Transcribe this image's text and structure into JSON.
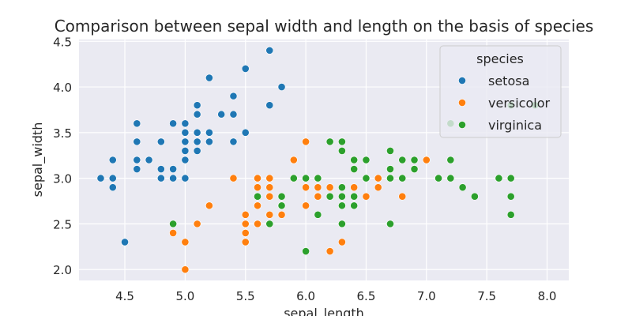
{
  "chart_data": {
    "type": "scatter",
    "title": "Comparison between sepal width and length on the basis of species",
    "xlabel": "sepal_length",
    "ylabel": "sepal_width",
    "xlim": [
      4.12,
      8.18
    ],
    "ylim": [
      1.88,
      4.52
    ],
    "xticks": [
      4.5,
      5.0,
      5.5,
      6.0,
      6.5,
      7.0,
      7.5,
      8.0
    ],
    "xtick_labels": [
      "4.5",
      "5.0",
      "5.5",
      "6.0",
      "6.5",
      "7.0",
      "7.5",
      "8.0"
    ],
    "yticks": [
      2.0,
      2.5,
      3.0,
      3.5,
      4.0,
      4.5
    ],
    "ytick_labels": [
      "2.0",
      "2.5",
      "3.0",
      "3.5",
      "4.0",
      "4.5"
    ],
    "grid": true,
    "background": "#eaeaf2",
    "legend": {
      "title": "species",
      "position": "top-right"
    },
    "series": [
      {
        "name": "setosa",
        "color": "#1f77b4",
        "points": [
          [
            5.1,
            3.5
          ],
          [
            4.9,
            3.0
          ],
          [
            4.7,
            3.2
          ],
          [
            4.6,
            3.1
          ],
          [
            5.0,
            3.6
          ],
          [
            5.4,
            3.9
          ],
          [
            4.6,
            3.4
          ],
          [
            5.0,
            3.4
          ],
          [
            4.4,
            2.9
          ],
          [
            4.9,
            3.1
          ],
          [
            5.4,
            3.7
          ],
          [
            4.8,
            3.4
          ],
          [
            4.8,
            3.0
          ],
          [
            4.3,
            3.0
          ],
          [
            5.8,
            4.0
          ],
          [
            5.7,
            4.4
          ],
          [
            5.4,
            3.9
          ],
          [
            5.1,
            3.5
          ],
          [
            5.7,
            3.8
          ],
          [
            5.1,
            3.8
          ],
          [
            5.4,
            3.4
          ],
          [
            5.1,
            3.7
          ],
          [
            4.6,
            3.6
          ],
          [
            5.1,
            3.3
          ],
          [
            4.8,
            3.4
          ],
          [
            5.0,
            3.0
          ],
          [
            5.0,
            3.4
          ],
          [
            5.2,
            3.5
          ],
          [
            5.2,
            3.4
          ],
          [
            4.7,
            3.2
          ],
          [
            4.8,
            3.1
          ],
          [
            5.4,
            3.4
          ],
          [
            5.2,
            4.1
          ],
          [
            5.5,
            4.2
          ],
          [
            4.9,
            3.1
          ],
          [
            5.0,
            3.2
          ],
          [
            5.5,
            3.5
          ],
          [
            4.9,
            3.6
          ],
          [
            4.4,
            3.0
          ],
          [
            5.1,
            3.4
          ],
          [
            5.0,
            3.5
          ],
          [
            4.5,
            2.3
          ],
          [
            4.4,
            3.2
          ],
          [
            5.0,
            3.5
          ],
          [
            5.1,
            3.8
          ],
          [
            4.8,
            3.0
          ],
          [
            5.1,
            3.8
          ],
          [
            4.6,
            3.2
          ],
          [
            5.3,
            3.7
          ],
          [
            5.0,
            3.3
          ]
        ]
      },
      {
        "name": "versicolor",
        "color": "#ff7f0e",
        "points": [
          [
            7.0,
            3.2
          ],
          [
            6.4,
            3.2
          ],
          [
            6.9,
            3.1
          ],
          [
            5.5,
            2.3
          ],
          [
            6.5,
            2.8
          ],
          [
            5.7,
            2.8
          ],
          [
            6.3,
            3.3
          ],
          [
            4.9,
            2.4
          ],
          [
            6.6,
            2.9
          ],
          [
            5.2,
            2.7
          ],
          [
            5.0,
            2.0
          ],
          [
            5.9,
            3.0
          ],
          [
            6.0,
            2.2
          ],
          [
            6.1,
            2.9
          ],
          [
            5.6,
            2.9
          ],
          [
            6.7,
            3.1
          ],
          [
            5.6,
            3.0
          ],
          [
            5.8,
            2.7
          ],
          [
            6.2,
            2.2
          ],
          [
            5.6,
            2.5
          ],
          [
            5.9,
            3.2
          ],
          [
            6.1,
            2.8
          ],
          [
            6.3,
            2.5
          ],
          [
            6.1,
            2.8
          ],
          [
            6.4,
            2.9
          ],
          [
            6.6,
            3.0
          ],
          [
            6.8,
            2.8
          ],
          [
            6.7,
            3.0
          ],
          [
            6.0,
            2.9
          ],
          [
            5.7,
            2.6
          ],
          [
            5.5,
            2.4
          ],
          [
            5.5,
            2.4
          ],
          [
            5.8,
            2.7
          ],
          [
            6.0,
            2.7
          ],
          [
            5.4,
            3.0
          ],
          [
            6.0,
            3.4
          ],
          [
            6.7,
            3.1
          ],
          [
            6.3,
            2.3
          ],
          [
            5.6,
            3.0
          ],
          [
            5.5,
            2.5
          ],
          [
            5.5,
            2.6
          ],
          [
            6.1,
            3.0
          ],
          [
            5.8,
            2.6
          ],
          [
            5.0,
            2.3
          ],
          [
            5.6,
            2.7
          ],
          [
            5.7,
            3.0
          ],
          [
            5.7,
            2.9
          ],
          [
            6.2,
            2.9
          ],
          [
            5.1,
            2.5
          ],
          [
            5.7,
            2.8
          ]
        ]
      },
      {
        "name": "virginica",
        "color": "#2ca02c",
        "points": [
          [
            6.3,
            3.3
          ],
          [
            5.8,
            2.7
          ],
          [
            7.1,
            3.0
          ],
          [
            6.3,
            2.9
          ],
          [
            6.5,
            3.0
          ],
          [
            7.6,
            3.0
          ],
          [
            4.9,
            2.5
          ],
          [
            7.3,
            2.9
          ],
          [
            6.7,
            2.5
          ],
          [
            7.2,
            3.6
          ],
          [
            6.5,
            3.2
          ],
          [
            6.4,
            2.7
          ],
          [
            6.8,
            3.0
          ],
          [
            5.7,
            2.5
          ],
          [
            5.8,
            2.8
          ],
          [
            6.4,
            3.2
          ],
          [
            6.5,
            3.0
          ],
          [
            7.7,
            3.8
          ],
          [
            7.7,
            2.6
          ],
          [
            6.0,
            2.2
          ],
          [
            6.9,
            3.2
          ],
          [
            5.6,
            2.8
          ],
          [
            7.7,
            2.8
          ],
          [
            6.3,
            2.7
          ],
          [
            6.7,
            3.3
          ],
          [
            7.2,
            3.2
          ],
          [
            6.2,
            2.8
          ],
          [
            6.1,
            3.0
          ],
          [
            6.4,
            2.8
          ],
          [
            7.2,
            3.0
          ],
          [
            7.4,
            2.8
          ],
          [
            7.9,
            3.8
          ],
          [
            6.4,
            2.8
          ],
          [
            6.3,
            2.8
          ],
          [
            6.1,
            2.6
          ],
          [
            7.7,
            3.0
          ],
          [
            6.3,
            3.4
          ],
          [
            6.4,
            3.1
          ],
          [
            6.0,
            3.0
          ],
          [
            6.9,
            3.1
          ],
          [
            6.7,
            3.1
          ],
          [
            6.9,
            3.1
          ],
          [
            5.8,
            2.7
          ],
          [
            6.8,
            3.2
          ],
          [
            6.7,
            3.3
          ],
          [
            6.7,
            3.0
          ],
          [
            6.3,
            2.5
          ],
          [
            6.5,
            3.0
          ],
          [
            6.2,
            3.4
          ],
          [
            5.9,
            3.0
          ]
        ]
      }
    ]
  }
}
